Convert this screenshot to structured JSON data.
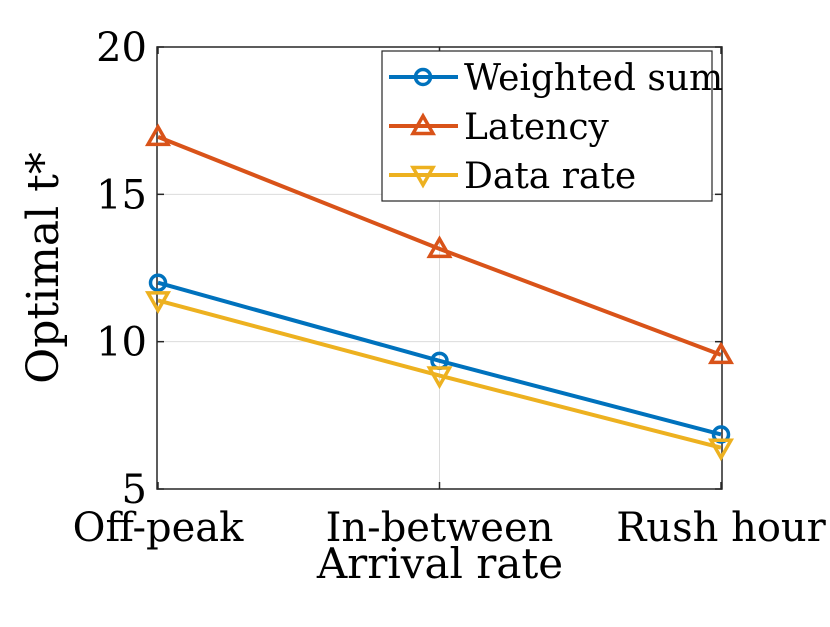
{
  "chart_data": {
    "type": "line",
    "title": "",
    "xlabel": "Arrival rate",
    "ylabel": "Optimal t*",
    "categories": [
      "Off-peak",
      "In-between",
      "Rush hour"
    ],
    "ylim": [
      5,
      20
    ],
    "yticks": [
      5,
      10,
      15,
      20
    ],
    "grid": true,
    "legend_position": "top-right",
    "series": [
      {
        "name": "Weighted sum",
        "color": "#0072BD",
        "marker": "circle",
        "values": [
          12.0,
          9.35,
          6.85
        ]
      },
      {
        "name": "Latency",
        "color": "#D95319",
        "marker": "triangle-up",
        "values": [
          16.95,
          13.15,
          9.55
        ]
      },
      {
        "name": "Data rate",
        "color": "#EDB120",
        "marker": "triangle-down",
        "values": [
          11.4,
          8.85,
          6.4
        ]
      }
    ]
  }
}
